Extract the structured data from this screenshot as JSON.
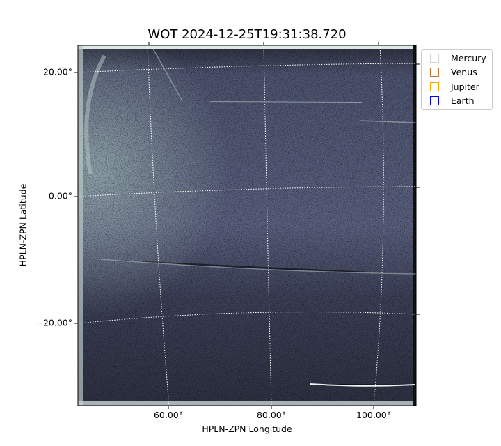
{
  "chart_data": {
    "type": "image",
    "title": "WOT 2024-12-25T19:31:38.720",
    "xlabel": "HPLN-ZPN Longitude",
    "ylabel": "HPLN-ZPN Latitude",
    "x_ticks": [
      "60.00°",
      "80.00°",
      "100.00°"
    ],
    "y_ticks": [
      "20.00°",
      "0.00°",
      "−20.00°"
    ],
    "grid": true,
    "grid_style": "dotted white",
    "colormap": "bone",
    "legend": {
      "placement": "outside-top-right",
      "entries": [
        {
          "name": "Mercury",
          "color": "#d3d3d3"
        },
        {
          "name": "Venus",
          "color": "#c87533"
        },
        {
          "name": "Jupiter",
          "color": "#ffa500"
        },
        {
          "name": "Earth",
          "color": "#0000ff"
        }
      ]
    }
  }
}
